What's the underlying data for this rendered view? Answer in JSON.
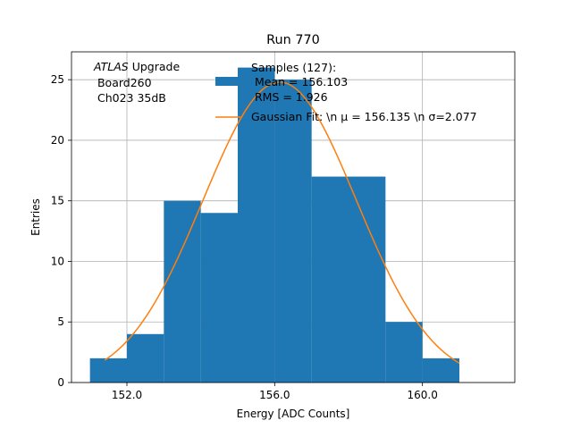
{
  "chart_data": {
    "type": "bar",
    "title": "Run 770",
    "xlabel": "Energy [ADC Counts]",
    "ylabel": "Entries",
    "xlim": [
      150.5,
      162.5
    ],
    "ylim": [
      0,
      27.3
    ],
    "grid": true,
    "x_ticks": [
      152.0,
      156.0,
      160.0
    ],
    "x_tick_labels": [
      "152.0",
      "156.0",
      "160.0"
    ],
    "y_ticks": [
      0,
      5,
      10,
      15,
      20,
      25
    ],
    "y_tick_labels": [
      "0",
      "5",
      "10",
      "15",
      "20",
      "25"
    ],
    "bins": [
      {
        "x0": 151,
        "x1": 152,
        "value": 2
      },
      {
        "x0": 152,
        "x1": 153,
        "value": 4
      },
      {
        "x0": 153,
        "x1": 154,
        "value": 15
      },
      {
        "x0": 154,
        "x1": 155,
        "value": 14
      },
      {
        "x0": 155,
        "x1": 156,
        "value": 26
      },
      {
        "x0": 156,
        "x1": 157,
        "value": 25
      },
      {
        "x0": 157,
        "x1": 158,
        "value": 17
      },
      {
        "x0": 158,
        "x1": 159,
        "value": 17
      },
      {
        "x0": 159,
        "x1": 160,
        "value": 5
      },
      {
        "x0": 160,
        "x1": 161,
        "value": 2
      }
    ],
    "fit": {
      "mu": 156.135,
      "sigma": 2.077,
      "x_range": [
        151.4,
        161.0
      ],
      "amplitude": 24.8
    },
    "legend": {
      "placement": "top-center",
      "entries": [
        {
          "label_lines": [
            "Samples (127):",
            " Mean = 156.103",
            " RMS = 1.926"
          ],
          "kind": "patch"
        },
        {
          "label": "Gaussian Fit: \\n μ = 156.135 \\n σ=2.077",
          "kind": "line"
        }
      ]
    },
    "annotation": {
      "italic": "ATLAS",
      "rest": " Upgrade",
      "lines": [
        " Board260",
        " Ch023 35dB"
      ]
    },
    "colors": {
      "bars": "#1f77b4",
      "fit": "#ff7f0e",
      "grid": "#b0b0b0"
    }
  }
}
